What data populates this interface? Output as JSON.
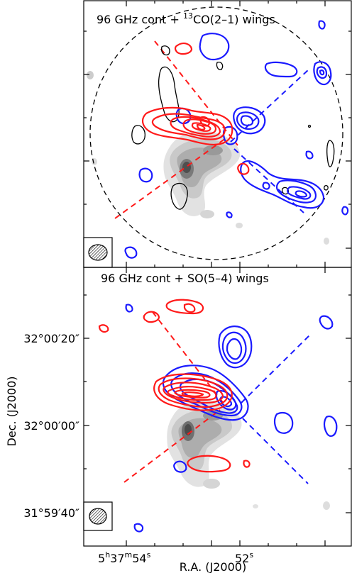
{
  "chart_data": [
    {
      "type": "contour",
      "title": "96 GHz cont + {sup}CO(2–1) wings",
      "title_parts": [
        "96 GHz cont + ",
        "13",
        "CO(2–1) wings"
      ],
      "background": "96 GHz continuum (grayscale)",
      "series": [
        {
          "name": "blue wing",
          "color": "#1a1aff"
        },
        {
          "name": "red wing",
          "color": "#ff1a1a"
        },
        {
          "name": "negative contours",
          "color": "#000000"
        }
      ],
      "circle": "dashed primary beam",
      "outflow_axes": "dashed red/blue lines",
      "beam": "hatched ellipse, bottom-left"
    },
    {
      "type": "contour",
      "title_parts": [
        "96 GHz cont + SO(5–4) wings"
      ],
      "background": "96 GHz continuum (grayscale)",
      "series": [
        {
          "name": "blue wing",
          "color": "#1a1aff"
        },
        {
          "name": "red wing",
          "color": "#ff1a1a"
        }
      ],
      "outflow_axes": "dashed red/blue lines",
      "beam": "hatched ellipse, bottom-left"
    }
  ],
  "axes": {
    "xlabel": "R.A. (J2000)",
    "ylabel": "Dec. (J2000)",
    "x_ticks": [
      {
        "h": "5",
        "m": "37",
        "s": "54",
        "text": "5h37m54s"
      },
      {
        "s": "52",
        "text": "52s"
      }
    ],
    "y_ticks": [
      "32°00′20″",
      "32°00′00″",
      "31°59′40″"
    ]
  },
  "colors": {
    "blue": "#1a1aff",
    "red": "#ff1a1a",
    "gray": "#a0a0a0"
  }
}
